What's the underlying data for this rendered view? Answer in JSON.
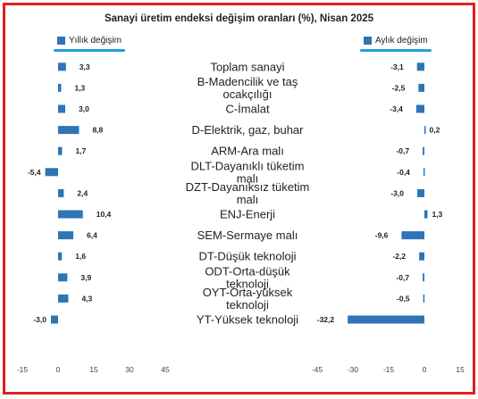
{
  "title": "Sanayi üretim endeksi değişim oranları (%), Nisan 2025",
  "colors": {
    "bar": "#2e75b6",
    "frame": "#e02020",
    "legend_underline": "#1ea0d8"
  },
  "chart_data": {
    "type": "bar",
    "title": "Sanayi üretim endeksi değişim oranları (%), Nisan 2025",
    "categories": [
      "Toplam sanayi",
      "B-Madencilik ve taş ocakçılığı",
      "C-İmalat",
      "D-Elektrik, gaz, buhar",
      "ARM-Ara malı",
      "DLT-Dayanıklı tüketim malı",
      "DZT-Dayanıksız tüketim malı",
      "ENJ-Enerji",
      "SEM-Sermaye malı",
      "DT-Düşük teknoloji",
      "ODT-Orta-düşük teknoloji",
      "OYT-Orta-yüksek teknoloji",
      "YT-Yüksek teknoloji"
    ],
    "category_lines": [
      [
        "Toplam sanayi"
      ],
      [
        "B-Madencilik ve taş",
        "ocakçılığı"
      ],
      [
        "C-İmalat"
      ],
      [
        "D-Elektrik, gaz, buhar"
      ],
      [
        "ARM-Ara malı"
      ],
      [
        "DLT-Dayanıklı tüketim",
        "malı"
      ],
      [
        "DZT-Dayanıksız tüketim",
        "malı"
      ],
      [
        "ENJ-Enerji"
      ],
      [
        "SEM-Sermaye malı"
      ],
      [
        "DT-Düşük teknoloji"
      ],
      [
        "ODT-Orta-düşük",
        "teknoloji"
      ],
      [
        "OYT-Orta-yüksek",
        "teknoloji"
      ],
      [
        "YT-Yüksek teknoloji"
      ]
    ],
    "series": [
      {
        "name": "Yıllık değişim",
        "panel": "left",
        "values": [
          3.3,
          1.3,
          3.0,
          8.8,
          1.7,
          -5.4,
          2.4,
          10.4,
          6.4,
          1.6,
          3.9,
          4.3,
          -3.0
        ],
        "labels": [
          "3,3",
          "1,3",
          "3,0",
          "8,8",
          "1,7",
          "-5,4",
          "2,4",
          "10,4",
          "6,4",
          "1,6",
          "3,9",
          "4,3",
          "-3,0"
        ],
        "xlim": [
          -15,
          45
        ],
        "ticks": [
          -15,
          0,
          15,
          30,
          45
        ],
        "tick_labels": [
          "-15",
          "0",
          "15",
          "30",
          "45"
        ]
      },
      {
        "name": "Aylık değişim",
        "panel": "right",
        "values": [
          -3.1,
          -2.5,
          -3.4,
          0.2,
          -0.7,
          -0.4,
          -3.0,
          1.3,
          -9.6,
          -2.2,
          -0.7,
          -0.5,
          -32.2
        ],
        "labels": [
          "-3,1",
          "-2,5",
          "-3,4",
          "0,2",
          "-0,7",
          "-0,4",
          "-3,0",
          "1,3",
          "-9,6",
          "-2,2",
          "-0,7",
          "-0,5",
          "-32,2"
        ],
        "xlim": [
          -45,
          15
        ],
        "ticks": [
          -45,
          -30,
          -15,
          0,
          15
        ],
        "tick_labels": [
          "-45",
          "-30",
          "-15",
          "0",
          "15"
        ]
      }
    ],
    "legend": [
      "Yıllık değişim",
      "Aylık değişim"
    ],
    "grid": false
  }
}
